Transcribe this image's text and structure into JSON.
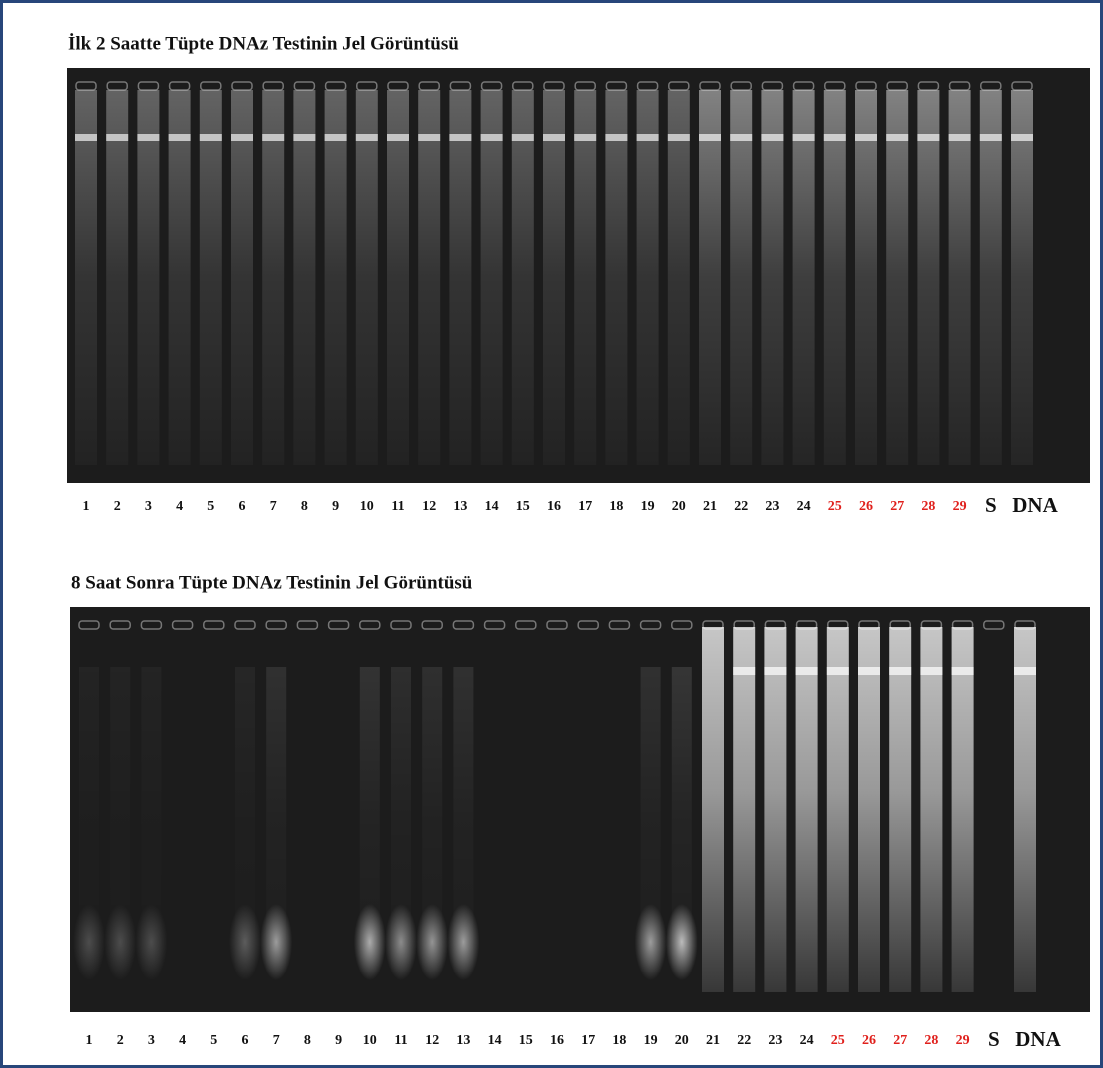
{
  "panels": [
    {
      "title": "İlk 2 Saatte Tüpte DNAz Testinin Jel Görüntüsü",
      "lanes": [
        {
          "label": "1"
        },
        {
          "label": "2"
        },
        {
          "label": "3"
        },
        {
          "label": "4"
        },
        {
          "label": "5"
        },
        {
          "label": "6"
        },
        {
          "label": "7"
        },
        {
          "label": "8"
        },
        {
          "label": "9"
        },
        {
          "label": "10"
        },
        {
          "label": "11"
        },
        {
          "label": "12"
        },
        {
          "label": "13"
        },
        {
          "label": "14"
        },
        {
          "label": "15"
        },
        {
          "label": "16"
        },
        {
          "label": "17"
        },
        {
          "label": "18"
        },
        {
          "label": "19"
        },
        {
          "label": "20"
        },
        {
          "label": "21"
        },
        {
          "label": "22"
        },
        {
          "label": "23"
        },
        {
          "label": "24"
        },
        {
          "label": "25",
          "color": "#e0201c"
        },
        {
          "label": "26",
          "color": "#e0201c"
        },
        {
          "label": "27",
          "color": "#e0201c"
        },
        {
          "label": "28",
          "color": "#e0201c"
        },
        {
          "label": "29",
          "color": "#e0201c"
        },
        {
          "label": "S"
        },
        {
          "label": "DNA"
        }
      ]
    },
    {
      "title": "8 Saat Sonra Tüpte DNAz Testinin Jel Görüntüsü",
      "lanes": [
        {
          "label": "1"
        },
        {
          "label": "2"
        },
        {
          "label": "3"
        },
        {
          "label": "4"
        },
        {
          "label": "5"
        },
        {
          "label": "6"
        },
        {
          "label": "7"
        },
        {
          "label": "8"
        },
        {
          "label": "9"
        },
        {
          "label": "10"
        },
        {
          "label": "11"
        },
        {
          "label": "12"
        },
        {
          "label": "13"
        },
        {
          "label": "14"
        },
        {
          "label": "15"
        },
        {
          "label": "16"
        },
        {
          "label": "17"
        },
        {
          "label": "18"
        },
        {
          "label": "19"
        },
        {
          "label": "20"
        },
        {
          "label": "21"
        },
        {
          "label": "22"
        },
        {
          "label": "23"
        },
        {
          "label": "24"
        },
        {
          "label": "25",
          "color": "#e0201c"
        },
        {
          "label": "26",
          "color": "#e0201c"
        },
        {
          "label": "27",
          "color": "#e0201c"
        },
        {
          "label": "28",
          "color": "#e0201c"
        },
        {
          "label": "29",
          "color": "#e0201c"
        },
        {
          "label": "S"
        },
        {
          "label": "DNA"
        }
      ]
    }
  ]
}
